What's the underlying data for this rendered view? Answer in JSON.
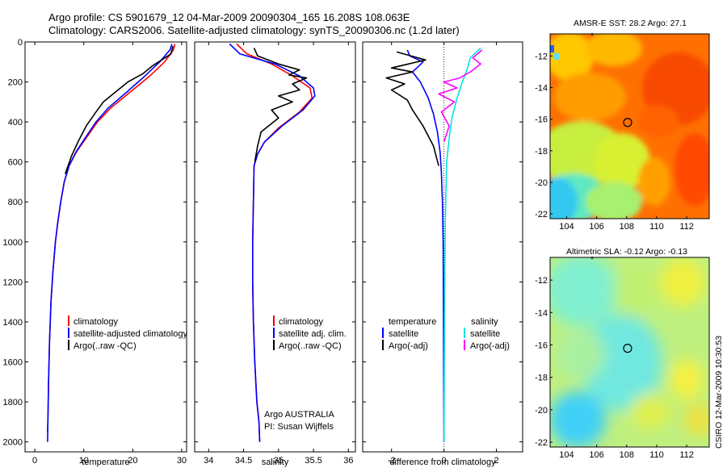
{
  "header": {
    "line1": "Argo profile: CS 5901679_12 04-Mar-2009 20090304_165 16.208S 108.063E",
    "line2": "Climatology: CARS2006. Satellite-adjusted climatology: synTS_20090306.nc (1.2d later)"
  },
  "colors": {
    "climatology": "#ff0000",
    "satellite": "#0000ff",
    "argo": "#000000",
    "sat_diff": "#00e5e5",
    "argo_adj": "#ff00ff"
  },
  "chart_data": [
    {
      "id": "temperature",
      "type": "line",
      "xlabel": "temperature",
      "xlim": [
        -2,
        31
      ],
      "xticks": [
        0,
        10,
        20,
        30
      ],
      "ylim": [
        2050,
        0
      ],
      "yticks": [
        0,
        200,
        400,
        600,
        800,
        1000,
        1200,
        1400,
        1600,
        1800,
        2000
      ],
      "series": [
        {
          "name": "climatology",
          "color": "#ff0000",
          "x": [
            28.6,
            28.3,
            26.5,
            23.5,
            19.5,
            15.5,
            12.8,
            10.5,
            8.5,
            7.0,
            6.0,
            5.3,
            4.7,
            4.2,
            3.7,
            3.3,
            3.0,
            2.8,
            2.7,
            2.6
          ],
          "y": [
            10,
            40,
            100,
            170,
            250,
            330,
            400,
            480,
            550,
            620,
            700,
            800,
            900,
            1000,
            1150,
            1300,
            1500,
            1700,
            1850,
            1950
          ]
        },
        {
          "name": "satellite-adjusted climatology",
          "color": "#0000ff",
          "x": [
            28.0,
            27.6,
            25.5,
            22.5,
            18.8,
            15.0,
            12.5,
            10.3,
            8.4,
            7.0,
            6.0,
            5.3,
            4.7,
            4.2,
            3.7,
            3.3,
            3.0,
            2.8,
            2.7,
            2.6
          ],
          "y": [
            10,
            40,
            100,
            170,
            250,
            330,
            400,
            480,
            550,
            620,
            700,
            800,
            900,
            1000,
            1150,
            1300,
            1500,
            1700,
            1850,
            2000
          ]
        },
        {
          "name": "Argo(..raw -QC)",
          "color": "#000000",
          "x": [
            28.2,
            27.8,
            24.0,
            22.0,
            19.0,
            17.5,
            16.0,
            14.0,
            12.5,
            10.5,
            8.8,
            7.5,
            6.2
          ],
          "y": [
            20,
            60,
            120,
            160,
            200,
            230,
            260,
            300,
            350,
            420,
            500,
            570,
            660
          ]
        }
      ]
    },
    {
      "id": "salinity",
      "type": "line",
      "xlabel": "salinity",
      "xlim": [
        33.8,
        36.1
      ],
      "xticks": [
        34,
        34.5,
        35,
        35.5,
        36
      ],
      "ylim": [
        2050,
        0
      ],
      "series": [
        {
          "name": "climatology",
          "color": "#ff0000",
          "x": [
            34.4,
            34.55,
            34.9,
            35.2,
            35.45,
            35.48,
            35.3,
            35.0,
            34.8,
            34.7,
            34.65,
            34.64,
            34.63,
            34.63,
            34.64,
            34.66,
            34.69,
            34.72,
            34.73
          ],
          "y": [
            10,
            60,
            110,
            170,
            230,
            280,
            350,
            430,
            500,
            560,
            620,
            800,
            1000,
            1200,
            1400,
            1600,
            1800,
            1900,
            2000
          ]
        },
        {
          "name": "satellite adj. clim.",
          "color": "#0000ff",
          "x": [
            34.3,
            34.45,
            34.95,
            35.3,
            35.5,
            35.52,
            35.35,
            35.05,
            34.8,
            34.7,
            34.65,
            34.64,
            34.63,
            34.63,
            34.64,
            34.66,
            34.69,
            34.72,
            34.73
          ],
          "y": [
            10,
            60,
            110,
            170,
            230,
            270,
            340,
            420,
            500,
            560,
            620,
            800,
            1000,
            1200,
            1400,
            1600,
            1800,
            1900,
            2000
          ]
        },
        {
          "name": "Argo(..raw -QC)",
          "color": "#000000",
          "x": [
            34.65,
            34.7,
            35.0,
            35.3,
            35.15,
            35.4,
            35.2,
            35.3,
            35.0,
            35.2,
            34.9,
            35.0,
            34.75,
            34.7,
            34.66
          ],
          "y": [
            30,
            70,
            110,
            140,
            165,
            180,
            210,
            240,
            270,
            300,
            340,
            380,
            450,
            520,
            600
          ]
        }
      ]
    },
    {
      "id": "difference",
      "type": "line",
      "xlabel": "difference from climatology",
      "xlim": [
        -3.1,
        3.0
      ],
      "xticks": [
        -2,
        0,
        2
      ],
      "ylim": [
        2050,
        0
      ],
      "series": [
        {
          "name": "temperature satellite",
          "color": "#0000ff",
          "x": [
            -1.4,
            -1.3,
            -0.8,
            -1.2,
            -0.9,
            -0.6,
            -0.4,
            -0.25,
            -0.15,
            -0.1,
            -0.06,
            -0.03,
            -0.02,
            0.0
          ],
          "y": [
            40,
            70,
            100,
            150,
            200,
            280,
            360,
            450,
            550,
            650,
            800,
            1000,
            1400,
            2000
          ]
        },
        {
          "name": "temperature Argo(-adj)",
          "color": "#000000",
          "x": [
            -1.8,
            -0.7,
            -2.0,
            -1.2,
            -2.2,
            -1.5,
            -2.0,
            -1.4,
            -1.2,
            -0.8,
            -0.4,
            -0.2
          ],
          "y": [
            50,
            90,
            130,
            150,
            180,
            210,
            240,
            290,
            340,
            420,
            520,
            620
          ]
        },
        {
          "name": "salinity satellite",
          "color": "#00e5e5",
          "x": [
            1.4,
            1.0,
            0.9,
            0.7,
            0.5,
            0.3,
            0.2,
            0.1,
            0.05,
            0.02,
            0.0
          ],
          "y": [
            30,
            80,
            130,
            200,
            280,
            380,
            480,
            600,
            900,
            1400,
            2000
          ]
        },
        {
          "name": "salinity Argo(-adj)",
          "color": "#ff00ff",
          "x": [
            1.45,
            1.1,
            1.4,
            1.0,
            0.6,
            0.0,
            0.5,
            -0.2,
            0.4,
            -0.1,
            0.2,
            0.0
          ],
          "y": [
            40,
            80,
            110,
            150,
            180,
            200,
            230,
            260,
            300,
            350,
            420,
            500
          ]
        }
      ]
    }
  ],
  "panel_temp_legend": [
    "climatology",
    "satellite-adjusted climatology",
    "Argo(..raw -QC)"
  ],
  "panel_sal_legend": [
    "climatology",
    "satellite adj. clim.",
    "Argo(..raw -QC)"
  ],
  "panel_sal_note": [
    "Argo AUSTRALIA",
    "PI: Susan Wijffels"
  ],
  "panel_diff_legend": {
    "col1_title": "temperature",
    "col1": [
      "satellite",
      "Argo(-adj)"
    ],
    "col2_title": "salinity",
    "col2": [
      "satellite",
      "Argo(-adj)"
    ]
  },
  "maps": [
    {
      "id": "sst",
      "title": "AMSR-E SST: 28.2 Argo: 27.1",
      "xticks": [
        104,
        106,
        108,
        110,
        112
      ],
      "yticks": [
        -12,
        -14,
        -16,
        -18,
        -20,
        -22
      ],
      "xlim": [
        102.9,
        113.5
      ],
      "ylim": [
        -22.3,
        -10.6
      ],
      "marker": [
        108.063,
        -16.208
      ]
    },
    {
      "id": "sla",
      "title": "Altimetric SLA: -0.12 Argo: -0.13",
      "xticks": [
        104,
        106,
        108,
        110,
        112
      ],
      "yticks": [
        -12,
        -14,
        -16,
        -18,
        -20,
        -22
      ],
      "xlim": [
        102.9,
        113.5
      ],
      "ylim": [
        -22.3,
        -10.6
      ],
      "marker": [
        108.063,
        -16.208
      ]
    }
  ],
  "credit": "CSIRO 12-Mar-2009 10:30:53"
}
